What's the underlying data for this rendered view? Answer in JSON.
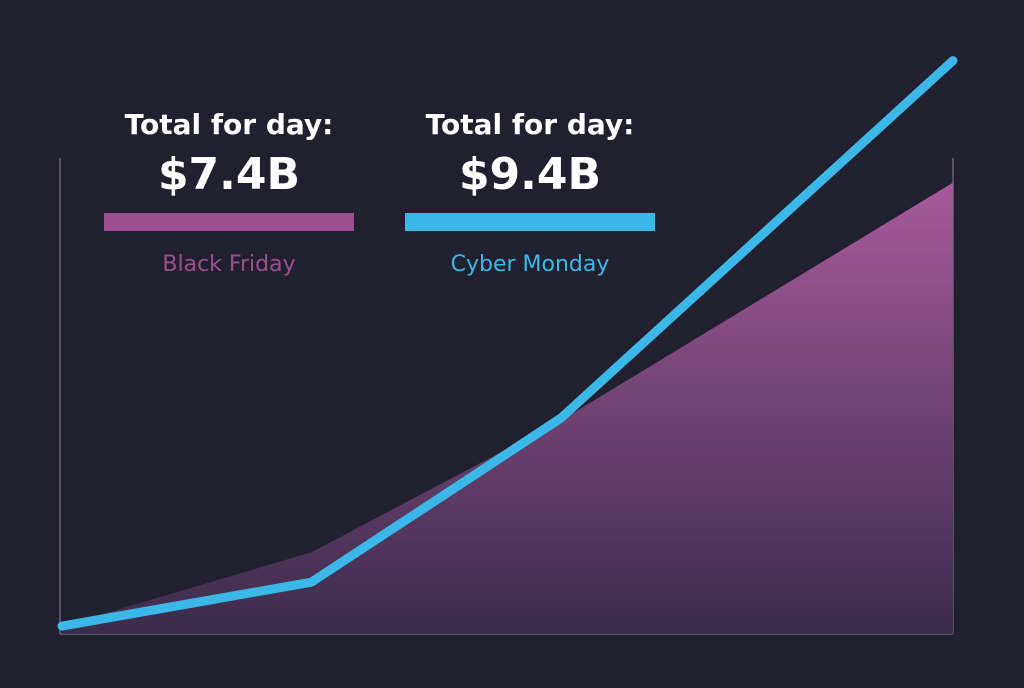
{
  "chart_data": {
    "type": "area-line",
    "x": [
      0,
      28,
      56,
      100
    ],
    "xlim": [
      0,
      100
    ],
    "ylim": [
      0,
      10
    ],
    "series": [
      {
        "name": "Black Friday",
        "color": "#9b4f8f",
        "style": "area",
        "total_title": "Total for day:",
        "total_label": "$7.4B",
        "values": [
          0.13,
          1.34,
          3.5,
          7.4
        ]
      },
      {
        "name": "Cyber Monday",
        "color": "#3bb8e8",
        "style": "line",
        "total_title": "Total for day:",
        "total_label": "$9.4B",
        "values": [
          0.13,
          0.85,
          3.54,
          9.4
        ]
      }
    ]
  }
}
